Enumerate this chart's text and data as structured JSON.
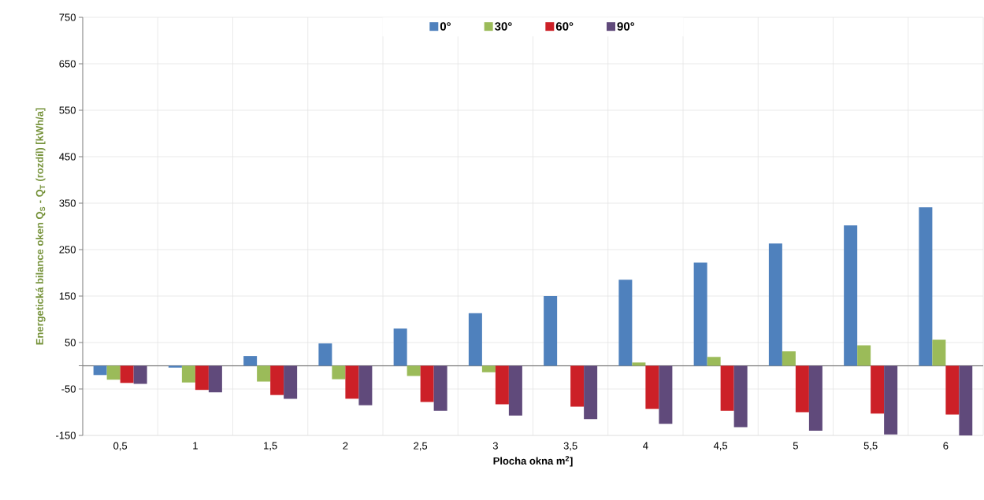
{
  "chart_data": {
    "type": "bar",
    "xlabel": "Plocha okna m$^{2}$]",
    "ylabel": "Energetická bilance oken Q$_{S}$ - Q$_{T}$ (rozdíl) [kWh/a]",
    "categories": [
      "0,5",
      "1",
      "1,5",
      "2",
      "2,5",
      "3",
      "3,5",
      "4",
      "4,5",
      "5",
      "5,5",
      "6"
    ],
    "series": [
      {
        "name": "0°",
        "color": "#4f81bd",
        "values": [
          -20,
          -4,
          21,
          48,
          80,
          113,
          150,
          185,
          222,
          263,
          302,
          341
        ]
      },
      {
        "name": "30°",
        "color": "#9bbb59",
        "values": [
          -30,
          -36,
          -34,
          -29,
          -22,
          -14,
          0,
          7,
          19,
          31,
          44,
          56
        ]
      },
      {
        "name": "60°",
        "color": "#cc2027",
        "values": [
          -37,
          -52,
          -63,
          -71,
          -78,
          -83,
          -88,
          -93,
          -97,
          -100,
          -103,
          -105
        ]
      },
      {
        "name": "90°",
        "color": "#604a7b",
        "values": [
          -39,
          -57,
          -71,
          -85,
          -97,
          -107,
          -115,
          -125,
          -132,
          -140,
          -148,
          -150
        ]
      }
    ],
    "ylim": [
      -150,
      750
    ],
    "yticks": [
      -150,
      -50,
      50,
      150,
      250,
      350,
      450,
      550,
      650,
      750
    ],
    "grid": true,
    "legend": "top"
  }
}
